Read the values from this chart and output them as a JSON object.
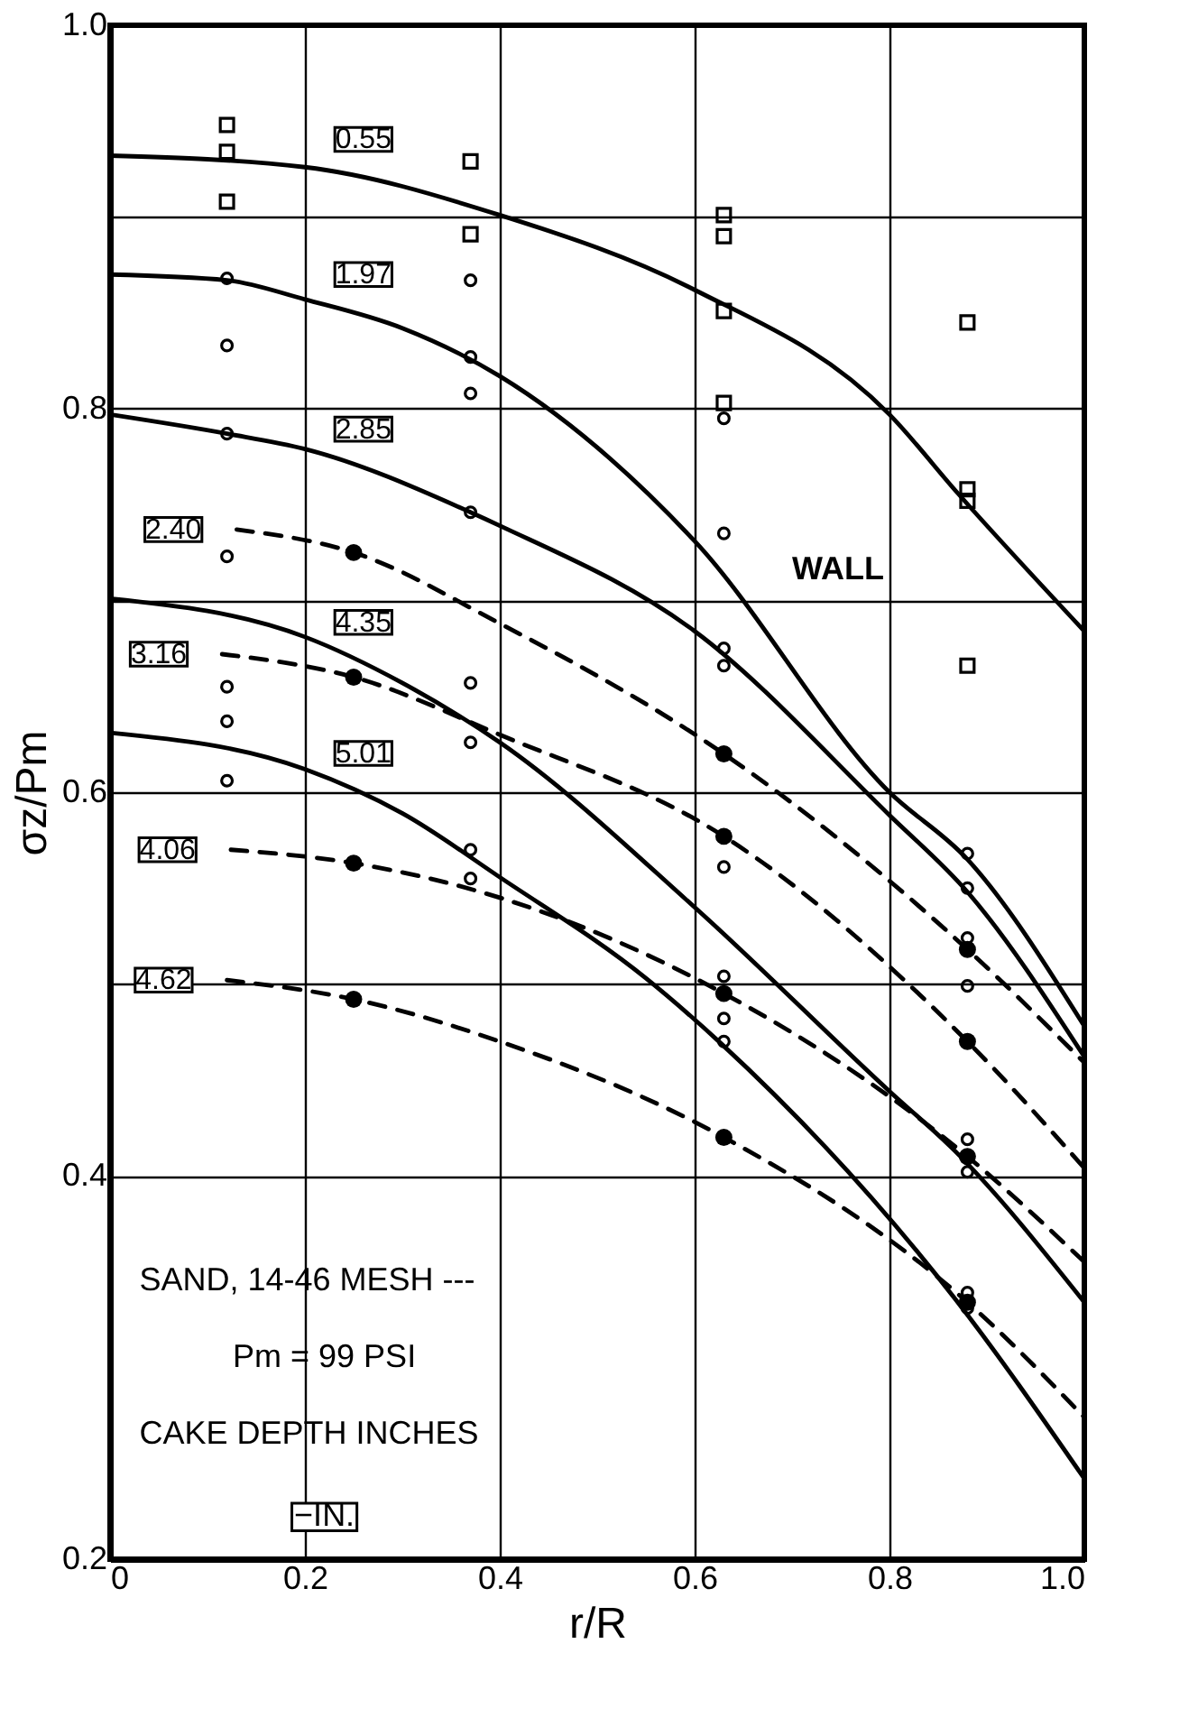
{
  "chart_data": {
    "type": "line",
    "xlabel": "r/R",
    "ylabel": "σz/Pm",
    "xlim": [
      0,
      1.0
    ],
    "ylim": [
      0.2,
      1.0
    ],
    "xticks": [
      0,
      0.2,
      0.4,
      0.6,
      0.8,
      {
        "value": 1.0,
        "label": "1.0"
      }
    ],
    "yticks": [
      0.2,
      0.4,
      {
        "value": 0.5,
        "label": null
      },
      0.6,
      {
        "value": 0.7,
        "label": null
      },
      0.8,
      {
        "value": 0.9,
        "label": null
      },
      {
        "value": 1.0,
        "label": "1.0"
      }
    ],
    "grid": true,
    "marker": "none",
    "series": [
      {
        "name": "0.55",
        "color": "#000000",
        "line_style": "solid",
        "x": [
          0,
          0.2,
          0.4,
          0.6,
          0.8,
          0.87,
          1.0
        ],
        "values": [
          0.932,
          0.926,
          0.901,
          0.862,
          0.797,
          0.756,
          0.684
        ]
      },
      {
        "name": "1.97",
        "color": "#000000",
        "line_style": "solid",
        "x": [
          0,
          0.12,
          0.2,
          0.3,
          0.4,
          0.6,
          0.8,
          0.88,
          1.0
        ],
        "values": [
          0.87,
          0.867,
          0.857,
          0.842,
          0.817,
          0.731,
          0.6,
          0.565,
          0.478
        ]
      },
      {
        "name": "2.85",
        "color": "#000000",
        "line_style": "solid",
        "x": [
          0,
          0.12,
          0.2,
          0.37,
          0.4,
          0.6,
          0.8,
          0.88,
          1.0
        ],
        "values": [
          0.797,
          0.787,
          0.779,
          0.746,
          0.739,
          0.684,
          0.588,
          0.548,
          0.462
        ]
      },
      {
        "name": "4.35",
        "color": "#000000",
        "line_style": "solid",
        "x": [
          0,
          0.2,
          0.3,
          0.4,
          0.6,
          0.8,
          0.867,
          1.0
        ],
        "values": [
          0.701,
          0.681,
          0.657,
          0.626,
          0.54,
          0.444,
          0.413,
          0.334
        ]
      },
      {
        "name": "5.01",
        "color": "#000000",
        "line_style": "solid",
        "x": [
          0,
          0.2,
          0.3,
          0.402,
          0.55,
          0.627,
          0.867,
          1.0
        ],
        "values": [
          0.631,
          0.612,
          0.589,
          0.555,
          0.503,
          0.469,
          0.336,
          0.242
        ]
      },
      {
        "name": "2.40",
        "color": "#000000",
        "line_style": "dashed",
        "x": [
          0.13,
          0.25,
          0.4,
          0.63,
          0.88,
          1.0
        ],
        "values": [
          0.737,
          0.725,
          0.688,
          0.62,
          0.518,
          0.459
        ]
      },
      {
        "name": "3.16",
        "color": "#000000",
        "line_style": "dashed",
        "x": [
          0.115,
          0.25,
          0.4,
          0.63,
          0.88,
          1.0
        ],
        "values": [
          0.672,
          0.66,
          0.63,
          0.577,
          0.47,
          0.404
        ]
      },
      {
        "name": "4.06",
        "color": "#000000",
        "line_style": "dashed",
        "x": [
          0.124,
          0.25,
          0.4,
          0.63,
          0.88,
          1.0
        ],
        "values": [
          0.57,
          0.563,
          0.545,
          0.495,
          0.41,
          0.355
        ]
      },
      {
        "name": "4.62",
        "color": "#000000",
        "line_style": "dashed",
        "x": [
          0.12,
          0.25,
          0.4,
          0.63,
          0.88,
          1.0
        ],
        "values": [
          0.502,
          0.492,
          0.47,
          0.42,
          0.334,
          0.274
        ]
      },
      {
        "type": "scatter",
        "marker": "square",
        "color": "#000000",
        "x": [
          0.12,
          0.12,
          0.12,
          0.37,
          0.37,
          0.63,
          0.63,
          0.63,
          0.63,
          0.88,
          0.88,
          0.88,
          0.88
        ],
        "values": [
          0.948,
          0.934,
          0.908,
          0.929,
          0.891,
          0.901,
          0.89,
          0.851,
          0.803,
          0.845,
          0.758,
          0.752,
          0.666
        ]
      },
      {
        "type": "scatter",
        "marker": "circle",
        "color": "#000000",
        "x": [
          0.12,
          0.12,
          0.12,
          0.12,
          0.12,
          0.12,
          0.12,
          0.37,
          0.37,
          0.37,
          0.37,
          0.37,
          0.37,
          0.37,
          0.37,
          0.63,
          0.63,
          0.63,
          0.63,
          0.63,
          0.63,
          0.63,
          0.63,
          0.88,
          0.88,
          0.88,
          0.88,
          0.88,
          0.88,
          0.88,
          0.88
        ],
        "values": [
          0.868,
          0.833,
          0.787,
          0.723,
          0.655,
          0.637,
          0.606,
          0.867,
          0.827,
          0.808,
          0.746,
          0.657,
          0.626,
          0.57,
          0.555,
          0.795,
          0.735,
          0.675,
          0.666,
          0.561,
          0.504,
          0.482,
          0.47,
          0.568,
          0.55,
          0.524,
          0.499,
          0.419,
          0.402,
          0.339,
          0.331
        ]
      },
      {
        "type": "scatter",
        "marker": "circle",
        "color": "#000000",
        "x": [
          0.25,
          0.25,
          0.25,
          0.25,
          0.63,
          0.63,
          0.63,
          0.63,
          0.88,
          0.88,
          0.88,
          0.88
        ],
        "values": [
          0.725,
          0.66,
          0.563,
          0.492,
          0.62,
          0.577,
          0.495,
          0.42,
          0.518,
          0.47,
          0.41,
          0.334
        ]
      }
    ],
    "annotations": [
      "WALL",
      "SAND, 14-46 MESH ---",
      "Pm = 99 PSI",
      "CAKE DEPTH INCHES",
      "−IN."
    ]
  }
}
